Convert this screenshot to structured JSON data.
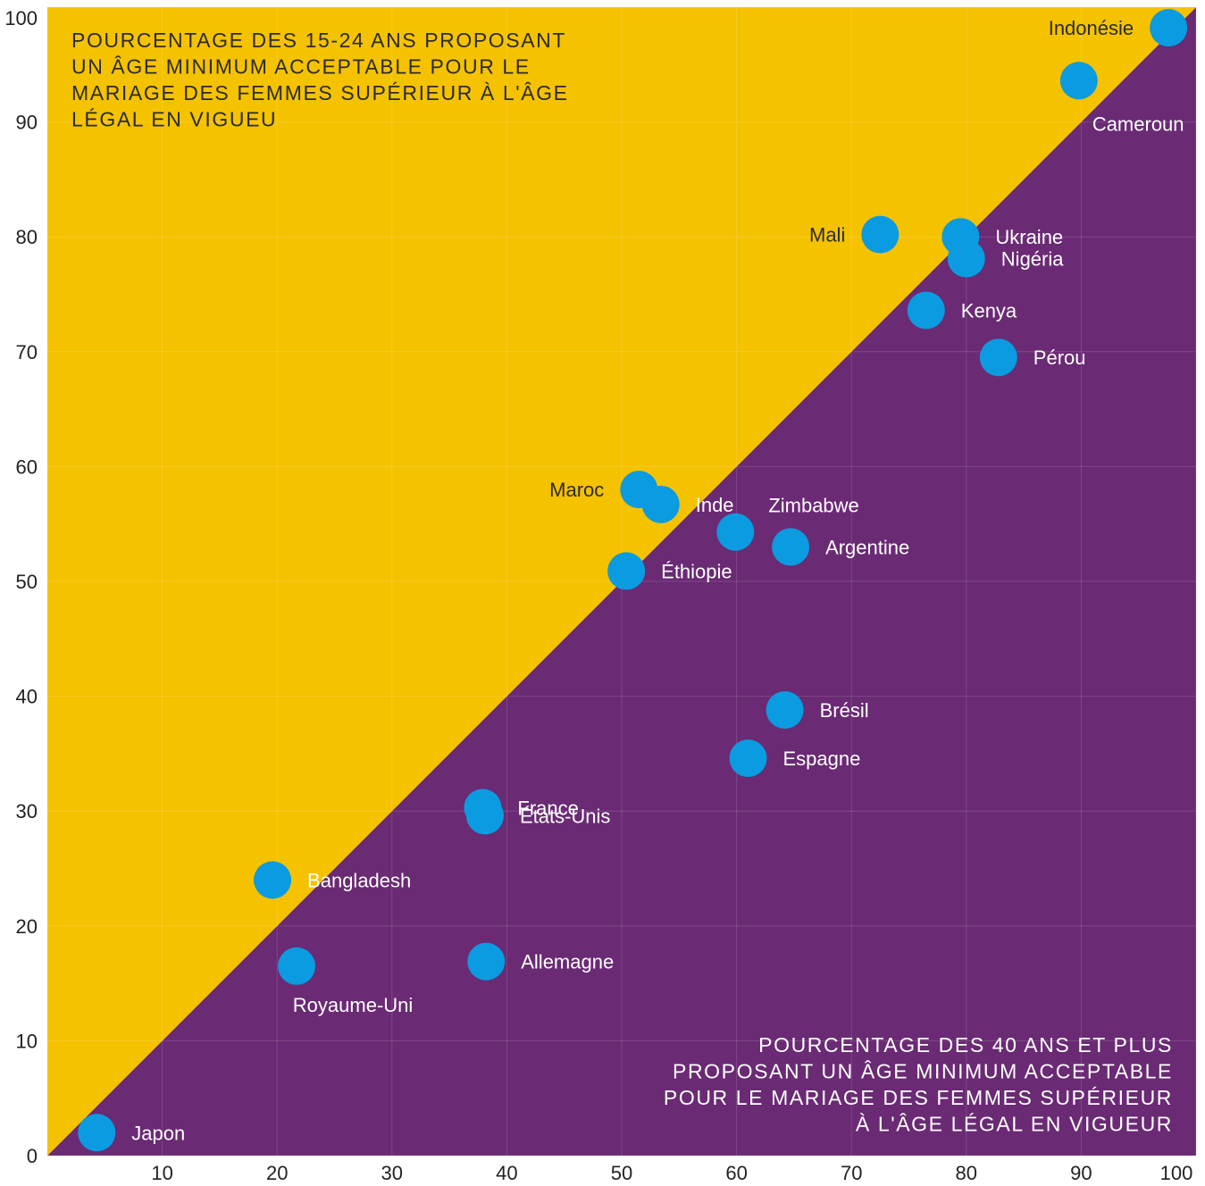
{
  "chart_data": {
    "type": "scatter",
    "title": "",
    "xlabel": "",
    "ylabel": "",
    "xlim": [
      0,
      100
    ],
    "ylim": [
      0,
      100
    ],
    "x_ticks": [
      "10",
      "20",
      "30",
      "40",
      "50",
      "60",
      "70",
      "80",
      "90",
      "100"
    ],
    "y_ticks": [
      "0",
      "10",
      "20",
      "30",
      "40",
      "50",
      "60",
      "70",
      "80",
      "90",
      "100"
    ],
    "grid": true,
    "colors": {
      "upper_region": "#F5C200",
      "lower_region": "#6A2A74",
      "points": "#0A9BE0",
      "label_dark": "#2b2b2b",
      "label_light": "#ffffff"
    },
    "annotation_upper": [
      "POURCENTAGE DES 15-24 ANS PROPOSANT",
      "UN ÂGE MINIMUM ACCEPTABLE POUR LE",
      "MARIAGE DES FEMMES SUPÉRIEUR À L'ÂGE",
      "LÉGAL EN VIGUEU"
    ],
    "annotation_lower": [
      "POURCENTAGE DES 40 ANS ET PLUS",
      "PROPOSANT UN ÂGE MINIMUM ACCEPTABLE",
      "POUR LE MARIAGE DES FEMMES SUPÉRIEUR",
      "À L'ÂGE LÉGAL EN VIGUEUR"
    ],
    "points": [
      {
        "label": "Indonésie",
        "x": 97.6,
        "y": 98.2,
        "label_pos": "left"
      },
      {
        "label": "Cameroun",
        "x": 89.8,
        "y": 93.6,
        "label_pos": "below-right"
      },
      {
        "label": "Mali",
        "x": 72.5,
        "y": 80.2,
        "label_pos": "left"
      },
      {
        "label": "Ukraine",
        "x": 79.5,
        "y": 80.0,
        "label_pos": "right"
      },
      {
        "label": "Nigéria",
        "x": 80.0,
        "y": 78.1,
        "label_pos": "right"
      },
      {
        "label": "Kenya",
        "x": 76.5,
        "y": 73.6,
        "label_pos": "right"
      },
      {
        "label": "Pérou",
        "x": 82.8,
        "y": 69.5,
        "label_pos": "right"
      },
      {
        "label": "Maroc",
        "x": 51.5,
        "y": 58.0,
        "label_pos": "left"
      },
      {
        "label": "Inde",
        "x": 53.4,
        "y": 56.7,
        "label_pos": "right"
      },
      {
        "label": "Zimbabwe",
        "x": 59.9,
        "y": 54.3,
        "label_pos": "above-right"
      },
      {
        "label": "Argentine",
        "x": 64.7,
        "y": 53.0,
        "label_pos": "right"
      },
      {
        "label": "Éthiopie",
        "x": 50.4,
        "y": 50.9,
        "label_pos": "right"
      },
      {
        "label": "Brésil",
        "x": 64.2,
        "y": 38.8,
        "label_pos": "right"
      },
      {
        "label": "Espagne",
        "x": 61.0,
        "y": 34.6,
        "label_pos": "right"
      },
      {
        "label": "France",
        "x": 37.9,
        "y": 30.3,
        "label_pos": "right"
      },
      {
        "label": "États-Unis",
        "x": 38.1,
        "y": 29.6,
        "label_pos": "right"
      },
      {
        "label": "Bangladesh",
        "x": 19.6,
        "y": 24.0,
        "label_pos": "right"
      },
      {
        "label": "Allemagne",
        "x": 38.2,
        "y": 16.9,
        "label_pos": "right"
      },
      {
        "label": "Royaume-Uni",
        "x": 21.7,
        "y": 16.5,
        "label_pos": "below"
      },
      {
        "label": "Japon",
        "x": 4.3,
        "y": 2.0,
        "label_pos": "right"
      }
    ]
  }
}
